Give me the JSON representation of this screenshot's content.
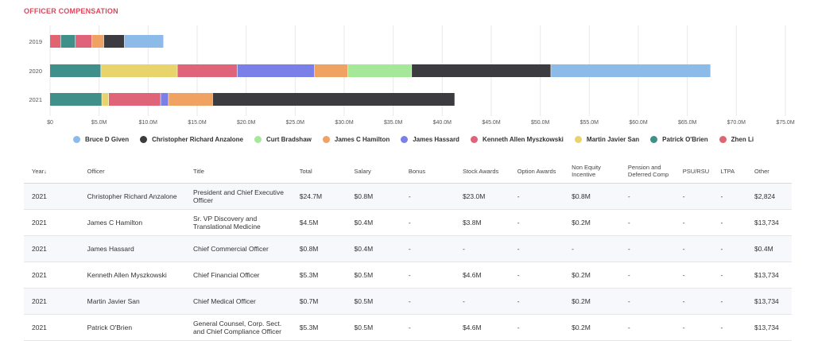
{
  "section_title": "OFFICER COMPENSATION",
  "chart_data": {
    "type": "bar",
    "orientation": "horizontal",
    "stacked": true,
    "categories": [
      "2019",
      "2020",
      "2021"
    ],
    "xlim": [
      0,
      75
    ],
    "x_ticks": [
      "$0",
      "$5.0M",
      "$10.0M",
      "$15.0M",
      "$20.0M",
      "$25.0M",
      "$30.0M",
      "$35.0M",
      "$40.0M",
      "$45.0M",
      "$50.0M",
      "$55.0M",
      "$60.0M",
      "$65.0M",
      "$70.0M",
      "$75.0M"
    ],
    "grid": true,
    "legend_position": "bottom",
    "series": [
      {
        "name": "Zhen Li",
        "color": "#e06472",
        "values": [
          1.1,
          0,
          0
        ]
      },
      {
        "name": "Patrick O'Brien",
        "color": "#3f8f8b",
        "values": [
          1.5,
          5.2,
          5.3
        ]
      },
      {
        "name": "Martin Javier San",
        "color": "#e8d46a",
        "values": [
          0,
          7.8,
          0.7
        ]
      },
      {
        "name": "Kenneth Allen Myszkowski",
        "color": "#e06479",
        "values": [
          1.7,
          6.1,
          5.3
        ]
      },
      {
        "name": "James Hassard",
        "color": "#7b80e8",
        "values": [
          0,
          7.9,
          0.8
        ]
      },
      {
        "name": "James C Hamilton",
        "color": "#efa262",
        "values": [
          1.2,
          3.4,
          4.5
        ]
      },
      {
        "name": "Curt Bradshaw",
        "color": "#a6e89a",
        "values": [
          0,
          6.5,
          0
        ]
      },
      {
        "name": "Christopher Richard Anzalone",
        "color": "#3b3b40",
        "values": [
          2.1,
          14.2,
          24.7
        ]
      },
      {
        "name": "Bruce D Given",
        "color": "#8cbbe9",
        "values": [
          4.0,
          16.3,
          0
        ]
      }
    ],
    "legend_order": [
      "Bruce D Given",
      "Christopher Richard Anzalone",
      "Curt Bradshaw",
      "James C Hamilton",
      "James Hassard",
      "Kenneth Allen Myszkowski",
      "Martin Javier San",
      "Patrick O'Brien",
      "Zhen Li"
    ]
  },
  "table": {
    "headers": {
      "year": "Year↓",
      "officer": "Officer",
      "title": "Title",
      "total": "Total",
      "salary": "Salary",
      "bonus": "Bonus",
      "stock": "Stock Awards",
      "option": "Option Awards",
      "neic": "Non Equity Incentive",
      "pension": "Pension and Deferred Comp",
      "psu": "PSU/RSU",
      "ltpa": "LTPA",
      "other": "Other"
    },
    "rows": [
      {
        "year": "2021",
        "officer": "Christopher Richard Anzalone",
        "title": "President and Chief Executive Officer",
        "total": "$24.7M",
        "salary": "$0.8M",
        "bonus": "-",
        "stock": "$23.0M",
        "option": "-",
        "neic": "$0.8M",
        "pension": "-",
        "psu": "-",
        "ltpa": "-",
        "other": "$2,824"
      },
      {
        "year": "2021",
        "officer": "James C Hamilton",
        "title": "Sr. VP Discovery and Translational Medicine",
        "total": "$4.5M",
        "salary": "$0.4M",
        "bonus": "-",
        "stock": "$3.8M",
        "option": "-",
        "neic": "$0.2M",
        "pension": "-",
        "psu": "-",
        "ltpa": "-",
        "other": "$13,734"
      },
      {
        "year": "2021",
        "officer": "James Hassard",
        "title": "Chief Commercial Officer",
        "total": "$0.8M",
        "salary": "$0.4M",
        "bonus": "-",
        "stock": "-",
        "option": "-",
        "neic": "-",
        "pension": "-",
        "psu": "-",
        "ltpa": "-",
        "other": "$0.4M"
      },
      {
        "year": "2021",
        "officer": "Kenneth Allen Myszkowski",
        "title": "Chief Financial Officer",
        "total": "$5.3M",
        "salary": "$0.5M",
        "bonus": "-",
        "stock": "$4.6M",
        "option": "-",
        "neic": "$0.2M",
        "pension": "-",
        "psu": "-",
        "ltpa": "-",
        "other": "$13,734"
      },
      {
        "year": "2021",
        "officer": "Martin Javier San",
        "title": "Chief Medical Officer",
        "total": "$0.7M",
        "salary": "$0.5M",
        "bonus": "-",
        "stock": "-",
        "option": "-",
        "neic": "$0.2M",
        "pension": "-",
        "psu": "-",
        "ltpa": "-",
        "other": "$13,734"
      },
      {
        "year": "2021",
        "officer": "Patrick O'Brien",
        "title": "General Counsel, Corp. Sect. and Chief Compliance Officer",
        "total": "$5.3M",
        "salary": "$0.5M",
        "bonus": "-",
        "stock": "$4.6M",
        "option": "-",
        "neic": "$0.2M",
        "pension": "-",
        "psu": "-",
        "ltpa": "-",
        "other": "$13,734"
      }
    ]
  }
}
